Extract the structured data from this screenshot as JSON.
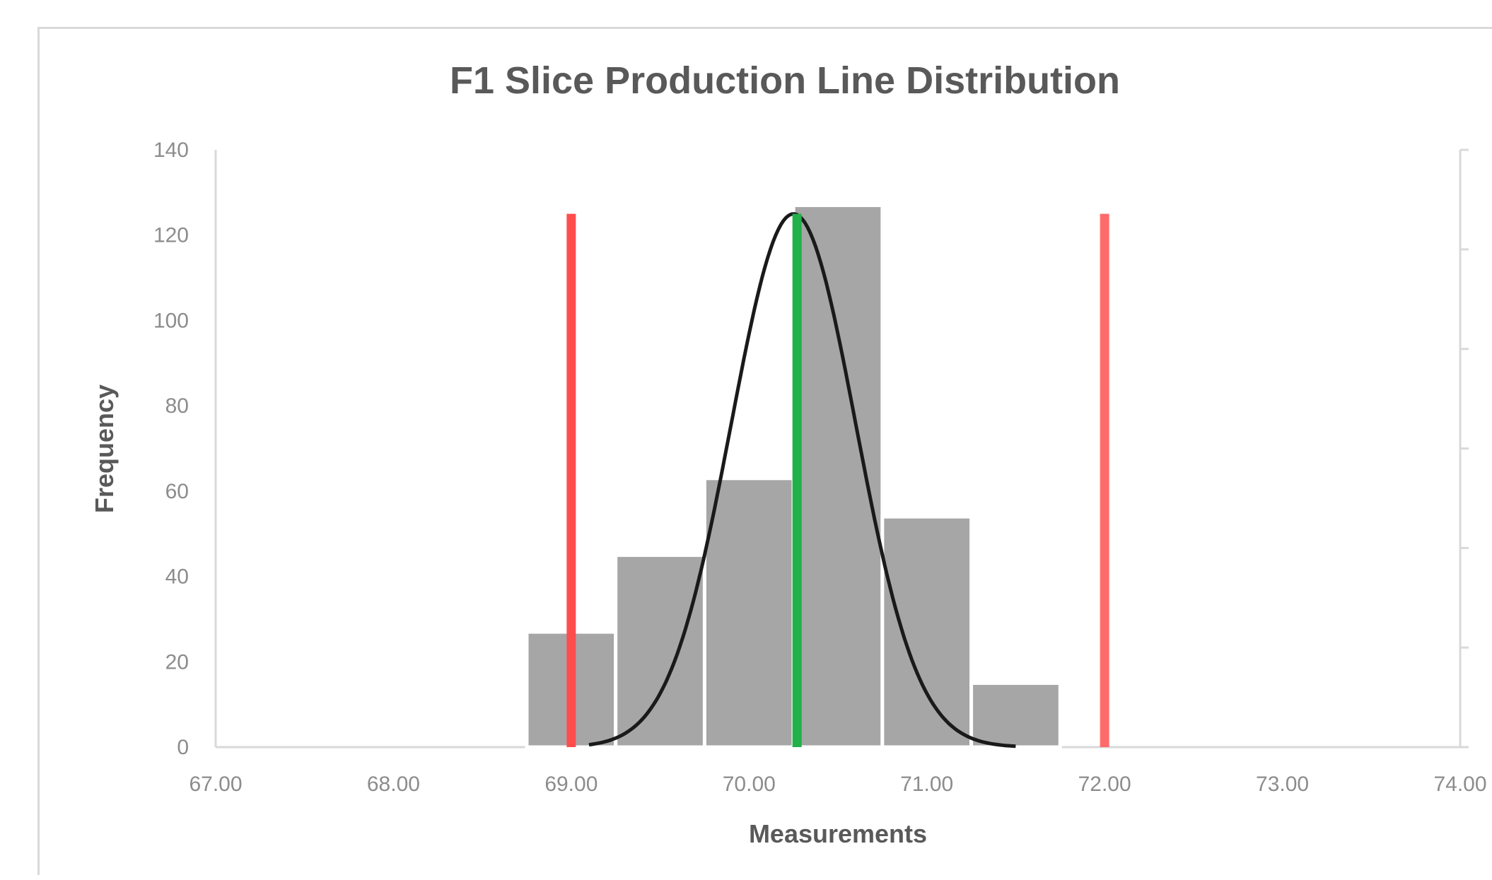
{
  "chart_data": {
    "type": "bar",
    "title": "F1 Slice Production Line Distribution",
    "xlabel": "Measurements",
    "ylabel": "Frequency",
    "xlim": [
      67,
      74
    ],
    "ylim": [
      0,
      140
    ],
    "x_ticks": [
      "67.00",
      "68.00",
      "69.00",
      "70.00",
      "71.00",
      "72.00",
      "73.00",
      "74.00"
    ],
    "y_ticks": [
      "0",
      "20",
      "40",
      "60",
      "80",
      "100",
      "120",
      "140"
    ],
    "bins": [
      {
        "x0": 68.75,
        "x1": 69.25,
        "value": 27
      },
      {
        "x0": 69.25,
        "x1": 69.75,
        "value": 45
      },
      {
        "x0": 69.75,
        "x1": 70.25,
        "value": 63
      },
      {
        "x0": 70.25,
        "x1": 70.75,
        "value": 127
      },
      {
        "x0": 70.75,
        "x1": 71.25,
        "value": 54
      },
      {
        "x0": 71.25,
        "x1": 71.75,
        "value": 15
      }
    ],
    "normal_curve": {
      "mean": 70.25,
      "sd": 0.35,
      "peak": 125,
      "x_range": [
        69.1,
        71.5
      ]
    },
    "reference_lines": [
      {
        "kind": "lower-limit",
        "x": 69.0,
        "top": 125,
        "color": "#ff4d4d"
      },
      {
        "kind": "mean",
        "x": 70.27,
        "top": 125,
        "color": "#22b04b"
      },
      {
        "kind": "upper-limit",
        "x": 72.0,
        "top": 125,
        "color": "#ff6b6b"
      }
    ],
    "bar_color": "#a6a6a6",
    "curve_color": "#1a1a1a",
    "grid": false,
    "legend": "none"
  }
}
